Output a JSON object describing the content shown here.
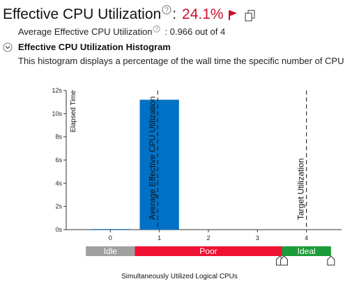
{
  "header": {
    "title": "Effective CPU Utilization",
    "colon": ":",
    "value": "24.1%",
    "value_color": "#c8102e",
    "icons": [
      "help-icon",
      "flag-icon",
      "copy-icon"
    ]
  },
  "average": {
    "label": "Average Effective CPU Utilization",
    "value": ": 0.966 out of 4"
  },
  "histogram": {
    "title": "Effective CPU Utilization Histogram",
    "description": "This histogram displays a percentage of the wall time the specific number of CPU"
  },
  "chart_data": {
    "type": "bar",
    "ylabel": "Elapsed Time",
    "xlabel": "Simultaneously Utilized Logical CPUs",
    "ylim": [
      0,
      12
    ],
    "y_ticks": [
      "0s",
      "2s",
      "4s",
      "6s",
      "8s",
      "10s",
      "12s"
    ],
    "x_ticks": [
      "0",
      "1",
      "2",
      "3",
      "4"
    ],
    "bars": [
      {
        "x_start": -0.4,
        "x_end": 0.4,
        "value": 0.05
      },
      {
        "x_start": 0.6,
        "x_end": 1.4,
        "value": 11.2
      }
    ],
    "bar_color": "#0071c5",
    "markers": [
      {
        "label": "Average Effective CPU Utilization",
        "x": 0.966
      },
      {
        "label": "Target Utilization",
        "x": 4
      }
    ],
    "bands": [
      {
        "label": "Idle",
        "from": -0.5,
        "to": 0.5,
        "color": "#a0a0a0"
      },
      {
        "label": "Poor",
        "from": 0.5,
        "to": 3.5,
        "color": "#ee1133"
      },
      {
        "label": "Ideal",
        "from": 3.5,
        "to": 4.5,
        "color": "#1c9b3a"
      }
    ],
    "grid": false,
    "legend": "none"
  }
}
